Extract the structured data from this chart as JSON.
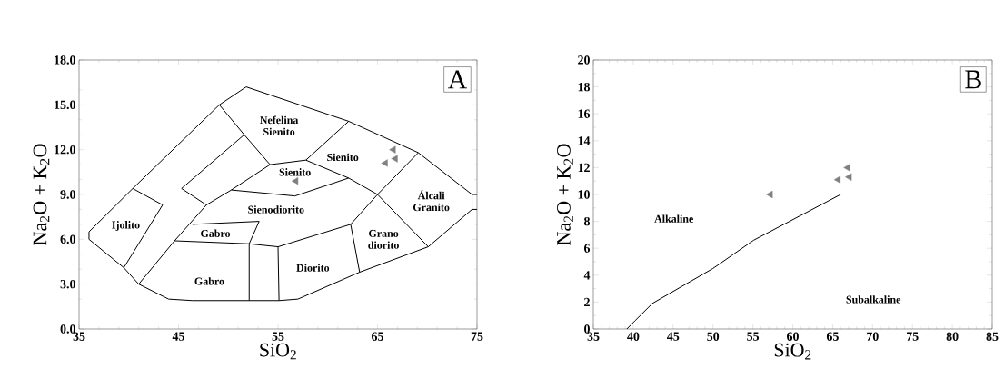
{
  "chart_data": [
    {
      "type": "scatter",
      "xlabel": "SiO$_{2}$",
      "ylabel": "Na$_{2}$O + K$_{2}$O",
      "xlim": [
        35,
        75
      ],
      "ylim": [
        0,
        18
      ],
      "xticks": [
        35,
        45,
        55,
        65,
        75
      ],
      "yticks": [
        {
          "value": 0,
          "label": "0.0"
        },
        {
          "value": 3,
          "label": "3.0"
        },
        {
          "value": 6,
          "label": "6.0"
        },
        {
          "value": 9,
          "label": "9.0"
        },
        {
          "value": 12,
          "label": "12.0"
        },
        {
          "value": 15,
          "label": "15.0"
        },
        {
          "value": 18,
          "label": "18.0"
        }
      ],
      "grid": false,
      "series": [
        {
          "type": "line",
          "color": "#000000",
          "x": [
            36,
            40.4,
            49.1,
            51.8,
            62.1,
            69.1,
            74.5,
            75
          ],
          "values": [
            6.5,
            9.4,
            15,
            16.2,
            13.9,
            11.8,
            9,
            9
          ]
        },
        {
          "type": "line",
          "color": "#000000",
          "x": [
            36,
            39.5,
            41,
            44,
            46.4,
            52.1,
            55.1,
            57,
            63.2,
            70.1,
            74.5,
            75
          ],
          "values": [
            6,
            4.1,
            3,
            2,
            1.9,
            1.9,
            1.9,
            2,
            3.8,
            5.5,
            8,
            8
          ]
        },
        {
          "type": "line",
          "color": "#000000",
          "x": [
            36,
            36
          ],
          "values": [
            6,
            6.5
          ]
        },
        {
          "type": "line",
          "color": "#000000",
          "x": [
            74.5,
            74.5
          ],
          "values": [
            8,
            9
          ]
        },
        {
          "type": "line",
          "color": "#000000",
          "x": [
            39.5,
            43.4
          ],
          "values": [
            4.1,
            8.3
          ]
        },
        {
          "type": "line",
          "color": "#000000",
          "x": [
            40.4,
            43.4
          ],
          "values": [
            9.4,
            8.3
          ]
        },
        {
          "type": "line",
          "color": "#000000",
          "x": [
            41,
            44.6,
            47.8,
            50.3,
            54.2,
            57.8,
            62.1
          ],
          "values": [
            3,
            5.9,
            8.3,
            9.3,
            11,
            11.3,
            13.9
          ]
        },
        {
          "type": "line",
          "color": "#000000",
          "x": [
            45.3,
            47.8
          ],
          "values": [
            9.4,
            8.3
          ]
        },
        {
          "type": "line",
          "color": "#000000",
          "x": [
            45.3,
            51.6,
            54.2
          ],
          "values": [
            9.4,
            13,
            11
          ]
        },
        {
          "type": "line",
          "color": "#000000",
          "x": [
            49.1,
            51.6
          ],
          "values": [
            15,
            13
          ]
        },
        {
          "type": "line",
          "color": "#000000",
          "x": [
            50.3,
            56.7,
            62.1
          ],
          "values": [
            9.3,
            8.9,
            10.1
          ]
        },
        {
          "type": "line",
          "color": "#000000",
          "x": [
            57.8,
            62.1,
            65,
            69.1
          ],
          "values": [
            11.3,
            10.1,
            9,
            11.8
          ]
        },
        {
          "type": "line",
          "color": "#000000",
          "x": [
            44.6,
            52.1,
            55,
            62.3,
            65,
            70.1
          ],
          "values": [
            5.9,
            5.7,
            5.5,
            7,
            9,
            5.5
          ]
        },
        {
          "type": "line",
          "color": "#000000",
          "x": [
            62.3,
            63.2
          ],
          "values": [
            7,
            3.8
          ]
        },
        {
          "type": "line",
          "color": "#000000",
          "x": [
            55,
            55.1
          ],
          "values": [
            5.5,
            1.9
          ]
        },
        {
          "type": "line",
          "color": "#000000",
          "x": [
            52.1,
            52.1,
            53.1
          ],
          "values": [
            1.9,
            5.7,
            7.2
          ]
        },
        {
          "type": "line",
          "color": "#000000",
          "x": [
            46.4,
            53.1
          ],
          "values": [
            7,
            7.2
          ]
        },
        {
          "color": "#808080",
          "marker": "triangle",
          "x": [
            56.8,
            65.8,
            66.8,
            66.6
          ],
          "values": [
            9.9,
            11.1,
            11.4,
            12
          ]
        }
      ],
      "annotations": [
        "A",
        "Nefelina Sienito",
        "Sienito",
        "Sienito",
        "Sienodiorito",
        "Gabro",
        "Gabro",
        "Diorito",
        "Grano diorito",
        "Álcali Granito",
        "Ijolito"
      ]
    },
    {
      "type": "scatter",
      "xlabel": "SiO$_{2}$",
      "ylabel": "Na$_{2}$O + K$_{2}$O",
      "xlim": [
        35,
        85
      ],
      "ylim": [
        0,
        20
      ],
      "xticks": [
        35,
        40,
        45,
        50,
        55,
        60,
        65,
        70,
        75,
        80,
        85
      ],
      "yticks": [
        0,
        2,
        4,
        6,
        8,
        10,
        12,
        14,
        16,
        18,
        20
      ],
      "grid": false,
      "series": [
        {
          "type": "line",
          "color": "#000000",
          "x": [
            39.2,
            40.2,
            42.4,
            50,
            55.1,
            66
          ],
          "values": [
            0,
            0.6,
            1.9,
            4.5,
            6.6,
            10
          ]
        },
        {
          "color": "#808080",
          "marker": "triangle",
          "x": [
            57.2,
            65.7,
            67.1,
            66.9
          ],
          "values": [
            10,
            11.1,
            11.3,
            12
          ]
        }
      ],
      "annotations": [
        "B",
        "Alkaline",
        "Subalkaline"
      ]
    }
  ]
}
